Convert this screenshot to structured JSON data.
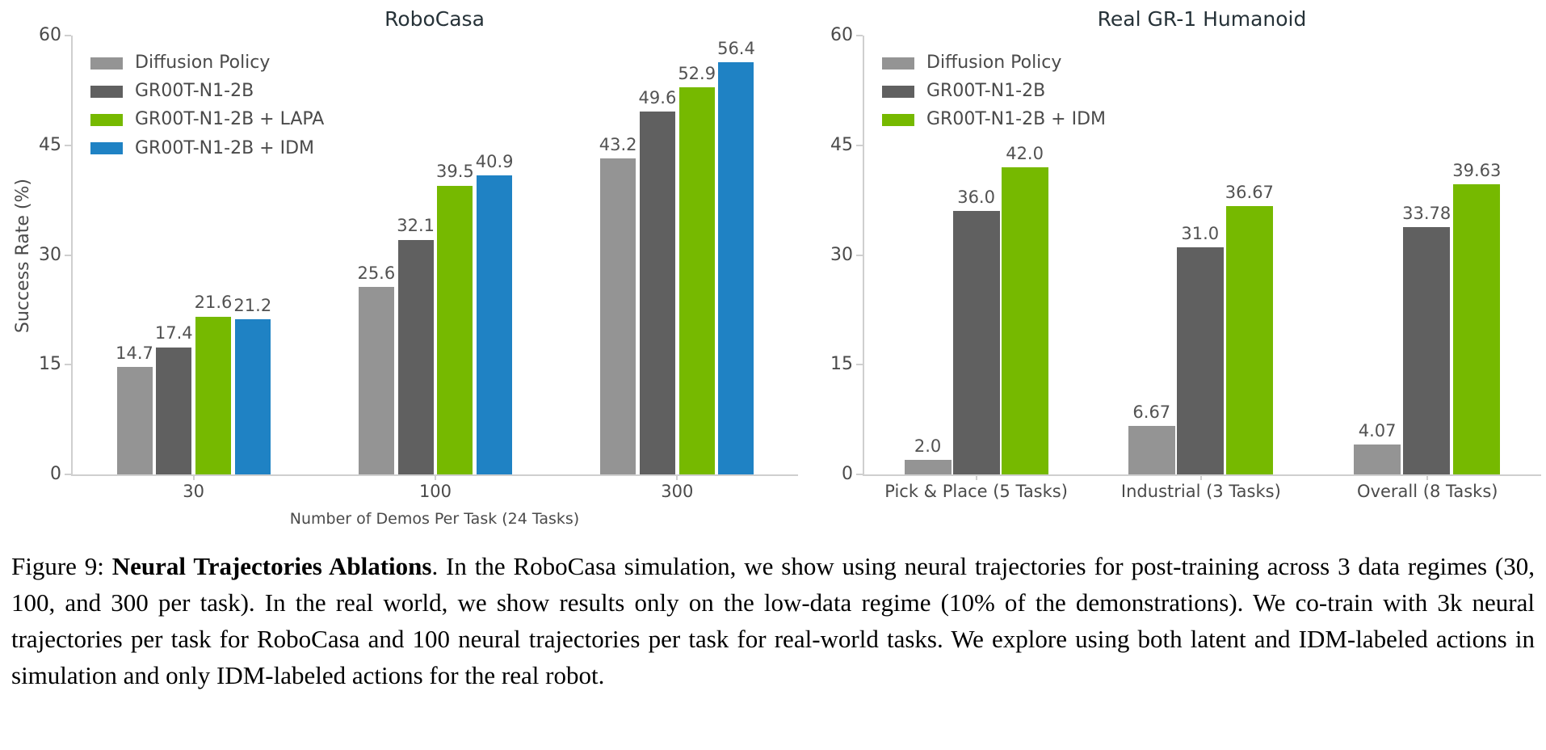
{
  "colors": {
    "axis": "#CFCFCF",
    "tick_text": "#4A4A4A",
    "value_text": "#525252",
    "title_text": "#263238",
    "series_gray": "#949494",
    "series_darkgray": "#606060",
    "series_green": "#76B900",
    "series_blue": "#1F82C4"
  },
  "chart_data": [
    {
      "type": "bar",
      "title": "RoboCasa",
      "xlabel": "Number of Demos Per Task (24 Tasks)",
      "ylabel": "Success Rate (%)",
      "categories": [
        "30",
        "100",
        "300"
      ],
      "series": [
        {
          "name": "Diffusion Policy",
          "color": "#949494",
          "values": [
            14.7,
            25.6,
            43.2
          ],
          "labels": [
            "14.7",
            "25.6",
            "43.2"
          ]
        },
        {
          "name": "GR00T-N1-2B",
          "color": "#606060",
          "values": [
            17.4,
            32.1,
            49.6
          ],
          "labels": [
            "17.4",
            "32.1",
            "49.6"
          ]
        },
        {
          "name": "GR00T-N1-2B + LAPA",
          "color": "#76B900",
          "values": [
            21.6,
            39.5,
            52.9
          ],
          "labels": [
            "21.6",
            "39.5",
            "52.9"
          ]
        },
        {
          "name": "GR00T-N1-2B + IDM",
          "color": "#1F82C4",
          "values": [
            21.2,
            40.9,
            56.4
          ],
          "labels": [
            "21.2",
            "40.9",
            "56.4"
          ]
        }
      ],
      "yticks": [
        0,
        15,
        30,
        45,
        60
      ],
      "ylim": [
        0,
        60
      ],
      "grid": false,
      "legend_position": "upper left"
    },
    {
      "type": "bar",
      "title": "Real GR-1 Humanoid",
      "xlabel": "",
      "ylabel": "",
      "categories": [
        "Pick & Place (5 Tasks)",
        "Industrial (3 Tasks)",
        "Overall (8 Tasks)"
      ],
      "series": [
        {
          "name": "Diffusion Policy",
          "color": "#949494",
          "values": [
            2.0,
            6.67,
            4.07
          ],
          "labels": [
            "2.0",
            "6.67",
            "4.07"
          ]
        },
        {
          "name": "GR00T-N1-2B",
          "color": "#606060",
          "values": [
            36.0,
            31.0,
            33.78
          ],
          "labels": [
            "36.0",
            "31.0",
            "33.78"
          ]
        },
        {
          "name": "GR00T-N1-2B + IDM",
          "color": "#76B900",
          "values": [
            42.0,
            36.67,
            39.63
          ],
          "labels": [
            "42.0",
            "36.67",
            "39.63"
          ]
        }
      ],
      "yticks": [
        0,
        15,
        30,
        45,
        60
      ],
      "ylim": [
        0,
        60
      ],
      "grid": false,
      "legend_position": "upper left"
    }
  ],
  "caption": {
    "prefix": "Figure 9: ",
    "bold": "Neural Trajectories Ablations",
    "rest": ". In the RoboCasa simulation, we show using neural trajectories for post-training across 3 data regimes (30, 100, and 300 per task). In the real world, we show results only on the low-data regime (10% of the demonstrations). We co-train with 3k neural trajectories per task for RoboCasa and 100 neural trajectories per task for real-world tasks. We explore using both latent and IDM-labeled actions in simulation and only IDM-labeled actions for the real robot."
  }
}
